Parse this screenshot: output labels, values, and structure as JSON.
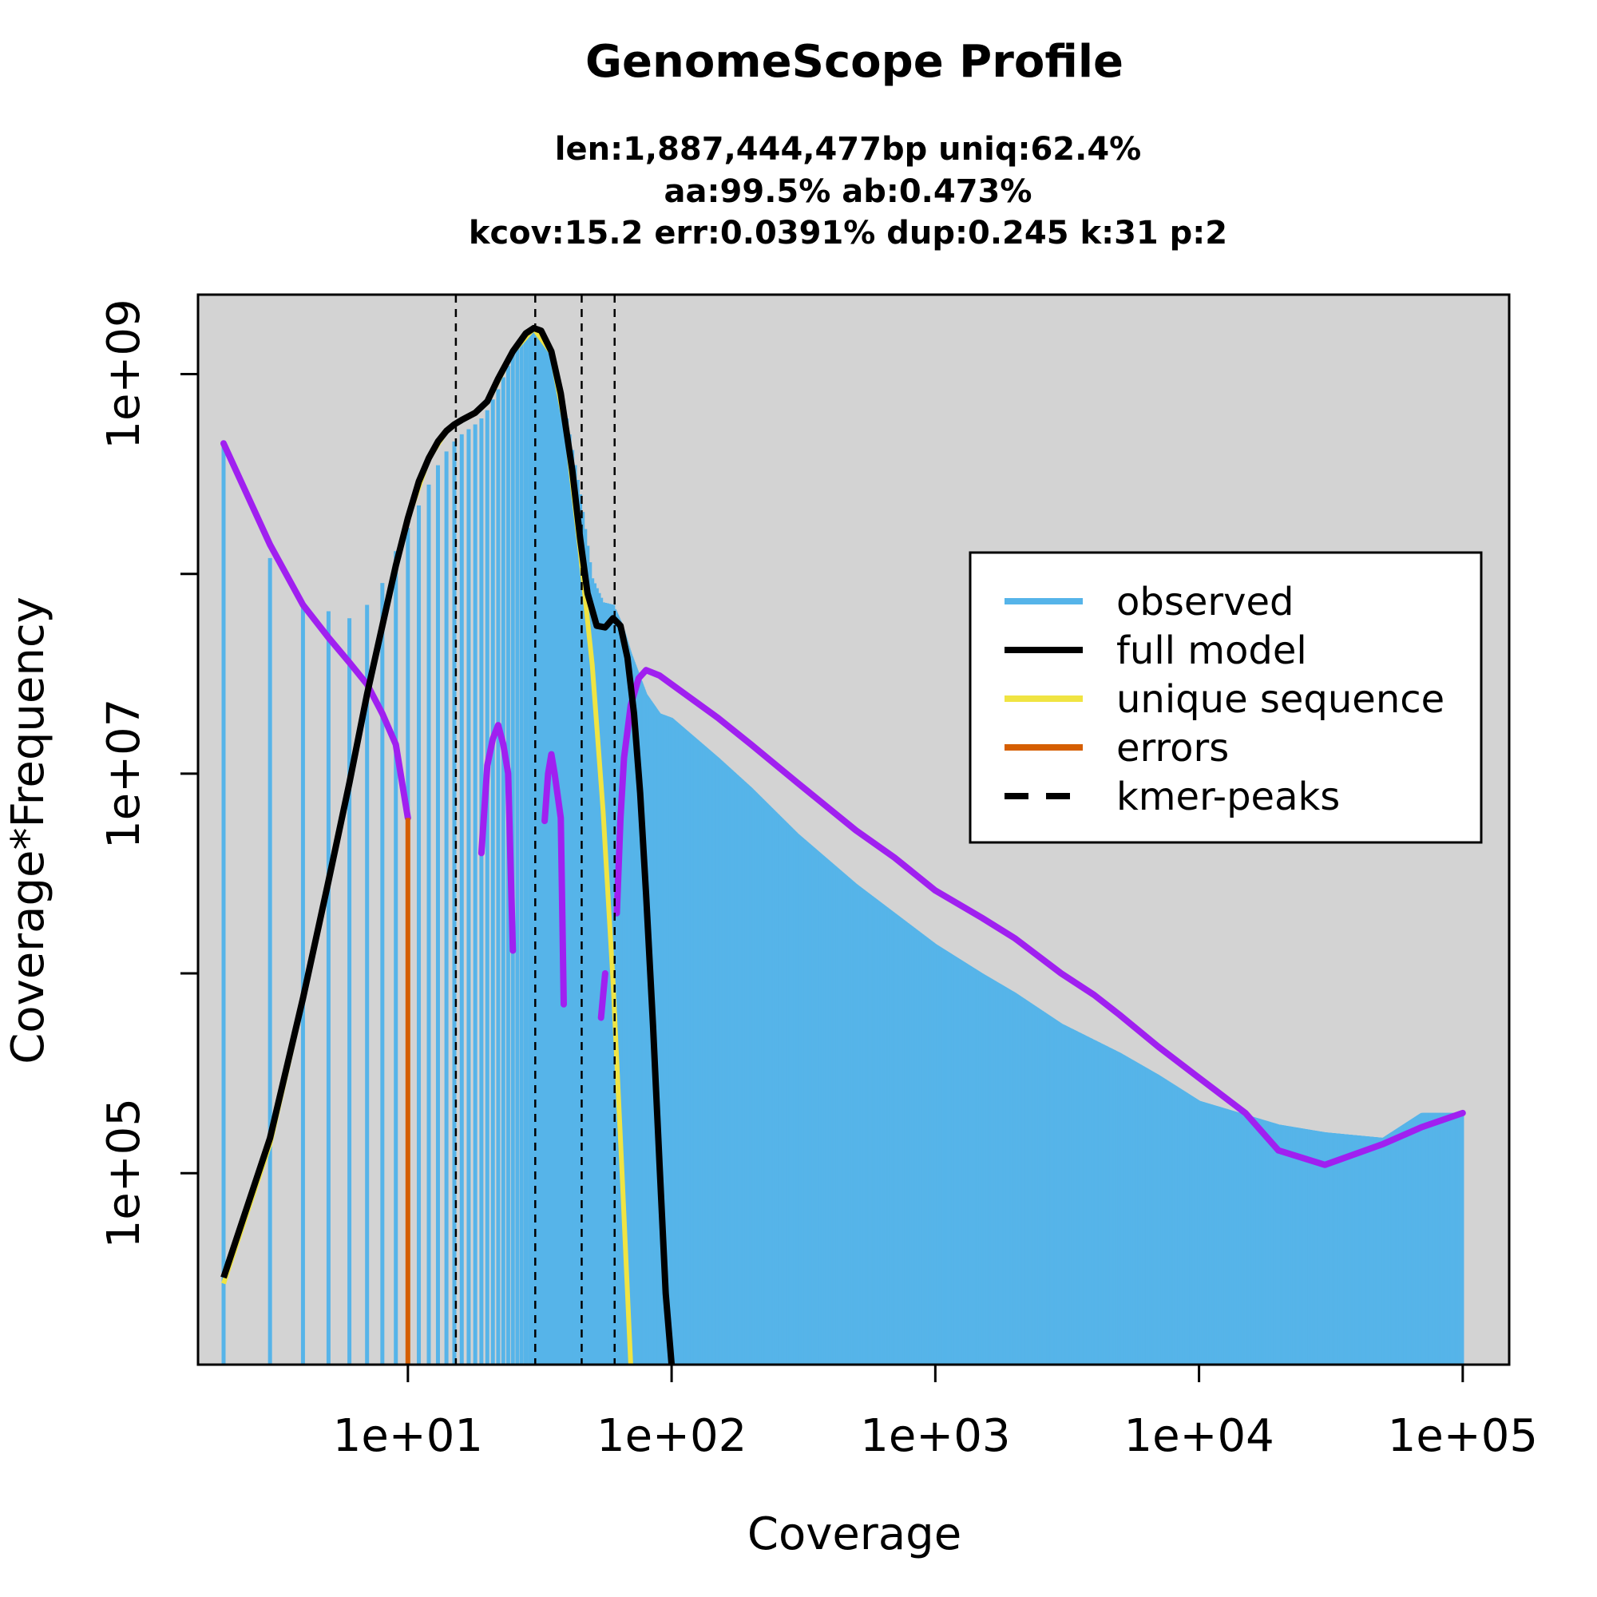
{
  "chart_data": {
    "type": "line",
    "title": "GenomeScope Profile",
    "subtitle_lines": [
      "len:1,887,444,477bp uniq:62.4%",
      "aa:99.5% ab:0.473%",
      "kcov:15.2 err:0.0391%  dup:0.245  k:31 p:2"
    ],
    "xlabel": "Coverage",
    "ylabel": "Coverage*Frequency",
    "xscale": "log",
    "yscale": "log",
    "xlim": [
      1.6,
      150000
    ],
    "ylim": [
      11000,
      2500000000
    ],
    "x_ticks": [
      {
        "value": 10,
        "label": "1e+01"
      },
      {
        "value": 100,
        "label": "1e+02"
      },
      {
        "value": 1000,
        "label": "1e+03"
      },
      {
        "value": 10000,
        "label": "1e+04"
      },
      {
        "value": 100000,
        "label": "1e+05"
      }
    ],
    "y_ticks": [
      {
        "value": 100000,
        "label": "1e+05"
      },
      {
        "value": 1000000,
        "label": ""
      },
      {
        "value": 10000000,
        "label": "1e+07"
      },
      {
        "value": 100000000,
        "label": ""
      },
      {
        "value": 1000000000,
        "label": "1e+09"
      }
    ],
    "background": "#d3d3d3",
    "grid": false,
    "legend_position": "right",
    "kmer_peaks": [
      15.2,
      30.4,
      45.6,
      60.8
    ],
    "series": [
      {
        "name": "observed",
        "color": "#56b4e9",
        "style": "histogram",
        "points": [
          [
            2,
            450000000
          ],
          [
            3,
            120000000
          ],
          [
            4,
            70000000
          ],
          [
            5,
            65000000
          ],
          [
            6,
            60000000
          ],
          [
            7,
            70000000
          ],
          [
            8,
            90000000
          ],
          [
            9,
            130000000
          ],
          [
            10,
            170000000
          ],
          [
            11,
            220000000
          ],
          [
            12,
            280000000
          ],
          [
            13,
            350000000
          ],
          [
            14,
            410000000
          ],
          [
            15,
            460000000
          ],
          [
            16,
            500000000
          ],
          [
            17,
            530000000
          ],
          [
            18,
            560000000
          ],
          [
            19,
            600000000
          ],
          [
            20,
            660000000
          ],
          [
            22,
            840000000
          ],
          [
            25,
            1250000000
          ],
          [
            28,
            1600000000
          ],
          [
            30,
            1700000000
          ],
          [
            33,
            1550000000
          ],
          [
            36,
            1150000000
          ],
          [
            40,
            600000000
          ],
          [
            45,
            250000000
          ],
          [
            50,
            95000000
          ],
          [
            55,
            72000000
          ],
          [
            60,
            70000000
          ],
          [
            65,
            55000000
          ],
          [
            70,
            40000000
          ],
          [
            80,
            25000000
          ],
          [
            90,
            20000000
          ],
          [
            100,
            19000000
          ],
          [
            150,
            12000000
          ],
          [
            200,
            8500000
          ],
          [
            300,
            5000000
          ],
          [
            500,
            2800000
          ],
          [
            700,
            2000000
          ],
          [
            1000,
            1400000
          ],
          [
            1500,
            1000000
          ],
          [
            2000,
            800000
          ],
          [
            3000,
            560000
          ],
          [
            5000,
            400000
          ],
          [
            7000,
            310000
          ],
          [
            10000,
            230000
          ],
          [
            20000,
            175000
          ],
          [
            30000,
            160000
          ],
          [
            50000,
            150000
          ],
          [
            70000,
            200000
          ],
          [
            100000,
            200000
          ]
        ]
      },
      {
        "name": "full model",
        "color": "#000000",
        "style": "line",
        "points": [
          [
            2,
            30000
          ],
          [
            3,
            150000
          ],
          [
            4,
            750000
          ],
          [
            5,
            2900000
          ],
          [
            6,
            9000000
          ],
          [
            7,
            25000000
          ],
          [
            8,
            55000000
          ],
          [
            9,
            110000000
          ],
          [
            10,
            190000000
          ],
          [
            11,
            290000000
          ],
          [
            12,
            380000000
          ],
          [
            13,
            460000000
          ],
          [
            14,
            520000000
          ],
          [
            15,
            560000000
          ],
          [
            16,
            590000000
          ],
          [
            18,
            640000000
          ],
          [
            20,
            730000000
          ],
          [
            22,
            950000000
          ],
          [
            25,
            1300000000
          ],
          [
            28,
            1600000000
          ],
          [
            30,
            1700000000
          ],
          [
            32,
            1650000000
          ],
          [
            35,
            1300000000
          ],
          [
            38,
            800000000
          ],
          [
            42,
            330000000
          ],
          [
            45,
            150000000
          ],
          [
            48,
            80000000
          ],
          [
            52,
            55000000
          ],
          [
            56,
            54000000
          ],
          [
            60,
            60000000
          ],
          [
            64,
            55000000
          ],
          [
            68,
            38000000
          ],
          [
            72,
            20000000
          ],
          [
            76,
            8000000
          ],
          [
            80,
            2500000
          ],
          [
            85,
            550000
          ],
          [
            90,
            110000
          ],
          [
            95,
            25000
          ],
          [
            100,
            11000
          ]
        ]
      },
      {
        "name": "unique sequence",
        "color": "#f0e442",
        "style": "line",
        "points": [
          [
            2,
            28000
          ],
          [
            3,
            140000
          ],
          [
            4,
            730000
          ],
          [
            5,
            2850000
          ],
          [
            6,
            8900000
          ],
          [
            7,
            24800000
          ],
          [
            8,
            54800000
          ],
          [
            9,
            109000000
          ],
          [
            10,
            189000000
          ],
          [
            12,
            378000000
          ],
          [
            14,
            518000000
          ],
          [
            16,
            588000000
          ],
          [
            18,
            635000000
          ],
          [
            20,
            720000000
          ],
          [
            25,
            1290000000
          ],
          [
            30,
            1690000000
          ],
          [
            35,
            1280000000
          ],
          [
            40,
            500000000
          ],
          [
            45,
            130000000
          ],
          [
            50,
            35000000
          ],
          [
            55,
            6500000
          ],
          [
            60,
            900000
          ],
          [
            65,
            95000
          ],
          [
            70,
            11000
          ]
        ]
      },
      {
        "name": "errors",
        "color": "#d55e00",
        "style": "line",
        "points": [
          [
            10,
            6000000
          ],
          [
            10,
            11000
          ]
        ]
      },
      {
        "name": "",
        "color": "#a020f0",
        "style": "line",
        "segments": [
          [
            [
              2,
              450000000
            ],
            [
              3,
              140000000
            ],
            [
              4,
              70000000
            ],
            [
              5,
              48000000
            ],
            [
              6,
              36000000
            ],
            [
              7,
              28000000
            ],
            [
              8,
              20000000
            ],
            [
              9,
              14000000
            ],
            [
              10,
              6000000
            ]
          ],
          [
            [
              19,
              4000000
            ],
            [
              20,
              11000000
            ],
            [
              21,
              15000000
            ],
            [
              22,
              17500000
            ],
            [
              23,
              14000000
            ],
            [
              24,
              10000000
            ],
            [
              25,
              1300000
            ]
          ],
          [
            [
              33,
              5800000
            ],
            [
              34,
              10000000
            ],
            [
              35,
              12500000
            ],
            [
              36,
              10000000
            ],
            [
              38,
              6000000
            ],
            [
              39,
              700000
            ]
          ],
          [
            [
              54,
              600000
            ],
            [
              56,
              1000000
            ]
          ],
          [
            [
              62,
              2000000
            ],
            [
              64,
              6000000
            ],
            [
              66,
              12000000
            ],
            [
              70,
              22000000
            ],
            [
              75,
              30000000
            ],
            [
              80,
              33000000
            ],
            [
              90,
              31000000
            ],
            [
              100,
              28000000
            ],
            [
              150,
              19000000
            ],
            [
              200,
              14000000
            ],
            [
              300,
              9000000
            ],
            [
              500,
              5200000
            ],
            [
              700,
              3800000
            ],
            [
              1000,
              2600000
            ],
            [
              1500,
              1900000
            ],
            [
              2000,
              1500000
            ],
            [
              3000,
              1000000
            ],
            [
              4000,
              780000
            ],
            [
              5000,
              620000
            ],
            [
              7000,
              430000
            ],
            [
              10000,
              300000
            ],
            [
              15000,
              200000
            ],
            [
              20000,
              130000
            ],
            [
              30000,
              110000
            ],
            [
              50000,
              140000
            ],
            [
              70000,
              170000
            ],
            [
              100000,
              200000
            ]
          ]
        ]
      }
    ],
    "legend": [
      {
        "label": "observed",
        "color": "#56b4e9",
        "dash": false
      },
      {
        "label": "full model",
        "color": "#000000",
        "dash": false
      },
      {
        "label": "unique sequence",
        "color": "#f0e442",
        "dash": false
      },
      {
        "label": "errors",
        "color": "#d55e00",
        "dash": false
      },
      {
        "label": "kmer-peaks",
        "color": "#000000",
        "dash": true
      }
    ]
  }
}
